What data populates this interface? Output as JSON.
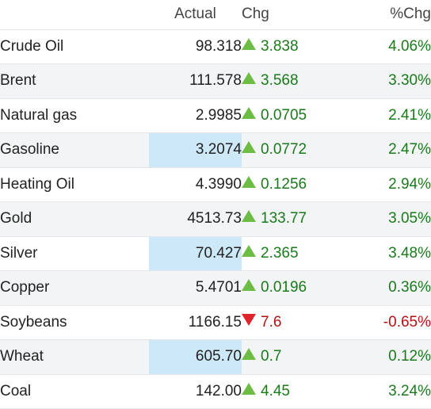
{
  "header": {
    "name": "",
    "actual": "Actual",
    "chg": "Chg",
    "pct": "%Chg"
  },
  "colors": {
    "up_arrow": "#6dbd45",
    "down_arrow": "#e0242b",
    "positive_text": "#1b7a1b",
    "negative_text": "#b21414",
    "highlight": "#cde8f6",
    "stripe": "#f2f4f6"
  },
  "rows": [
    {
      "name": "Crude Oil",
      "actual": "98.318",
      "chg": "3.838",
      "pct": "4.06%",
      "direction": "up",
      "highlight": false
    },
    {
      "name": "Brent",
      "actual": "111.578",
      "chg": "3.568",
      "pct": "3.30%",
      "direction": "up",
      "highlight": false
    },
    {
      "name": "Natural gas",
      "actual": "2.9985",
      "chg": "0.0705",
      "pct": "2.41%",
      "direction": "up",
      "highlight": false
    },
    {
      "name": "Gasoline",
      "actual": "3.2074",
      "chg": "0.0772",
      "pct": "2.47%",
      "direction": "up",
      "highlight": true
    },
    {
      "name": "Heating Oil",
      "actual": "4.3990",
      "chg": "0.1256",
      "pct": "2.94%",
      "direction": "up",
      "highlight": false
    },
    {
      "name": "Gold",
      "actual": "4513.73",
      "chg": "133.77",
      "pct": "3.05%",
      "direction": "up",
      "highlight": false
    },
    {
      "name": "Silver",
      "actual": "70.427",
      "chg": "2.365",
      "pct": "3.48%",
      "direction": "up",
      "highlight": true
    },
    {
      "name": "Copper",
      "actual": "5.4701",
      "chg": "0.0196",
      "pct": "0.36%",
      "direction": "up",
      "highlight": false
    },
    {
      "name": "Soybeans",
      "actual": "1166.15",
      "chg": "7.6",
      "pct": "-0.65%",
      "direction": "down",
      "highlight": false
    },
    {
      "name": "Wheat",
      "actual": "605.70",
      "chg": "0.7",
      "pct": "0.12%",
      "direction": "up",
      "highlight": true
    },
    {
      "name": "Coal",
      "actual": "142.00",
      "chg": "4.45",
      "pct": "3.24%",
      "direction": "up",
      "highlight": false
    }
  ]
}
